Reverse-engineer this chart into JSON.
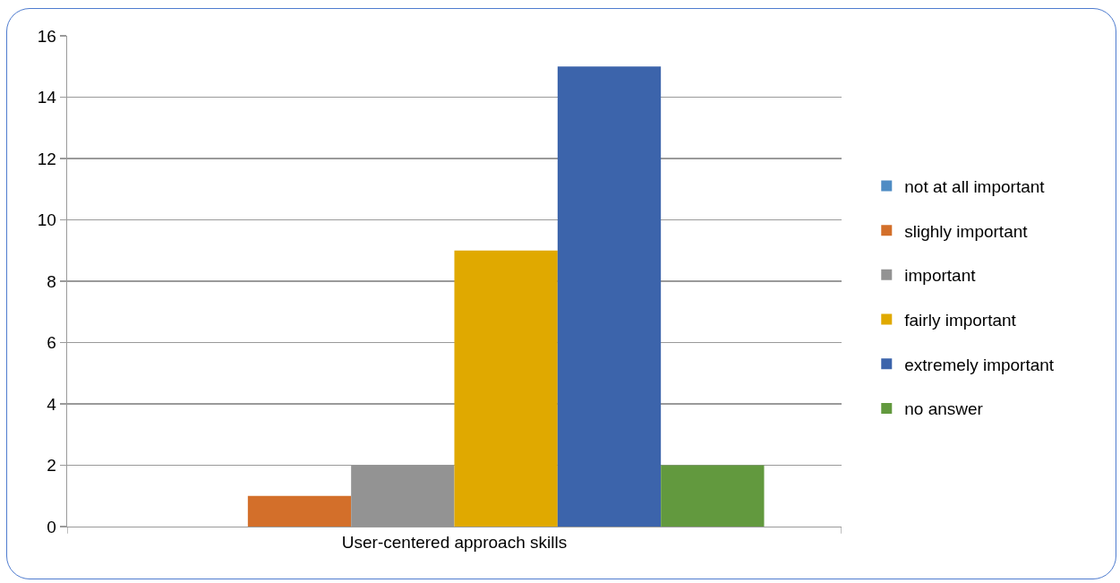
{
  "chart_data": {
    "type": "bar",
    "categories": [
      "User-centered approach skills"
    ],
    "series": [
      {
        "name": "not at all important",
        "color": "#4f8cc4",
        "values": [
          0
        ]
      },
      {
        "name": "slighly important",
        "color": "#d36f2a",
        "values": [
          1
        ]
      },
      {
        "name": "important",
        "color": "#939393",
        "values": [
          2
        ]
      },
      {
        "name": "fairly important",
        "color": "#e0a900",
        "values": [
          9
        ]
      },
      {
        "name": "extremely important",
        "color": "#3c64ab",
        "values": [
          15
        ]
      },
      {
        "name": "no answer",
        "color": "#62993e",
        "values": [
          2
        ]
      }
    ],
    "ylim": [
      0,
      16
    ],
    "yticks": [
      0,
      2,
      4,
      6,
      8,
      10,
      12,
      14,
      16
    ],
    "grid": "y",
    "legend": "right"
  }
}
